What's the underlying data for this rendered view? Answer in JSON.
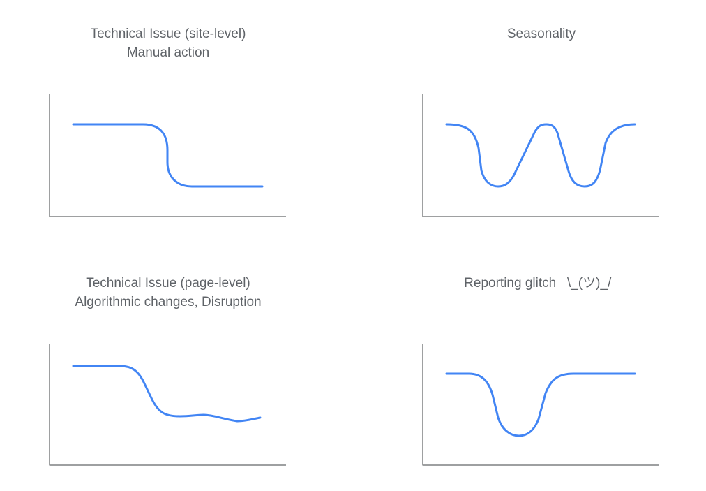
{
  "panels": {
    "site_level": {
      "title_line1": "Technical Issue (site-level)",
      "title_line2": "Manual action"
    },
    "seasonality": {
      "title_line1": "Seasonality"
    },
    "page_level": {
      "title_line1": "Technical Issue (page-level)",
      "title_line2": "Algorithmic changes, Disruption"
    },
    "glitch": {
      "title_line1": "Reporting glitch ¯\\_(ツ)_/¯"
    }
  },
  "colors": {
    "line": "#4285f4",
    "axis": "#3c4043",
    "text": "#5f6368"
  }
}
